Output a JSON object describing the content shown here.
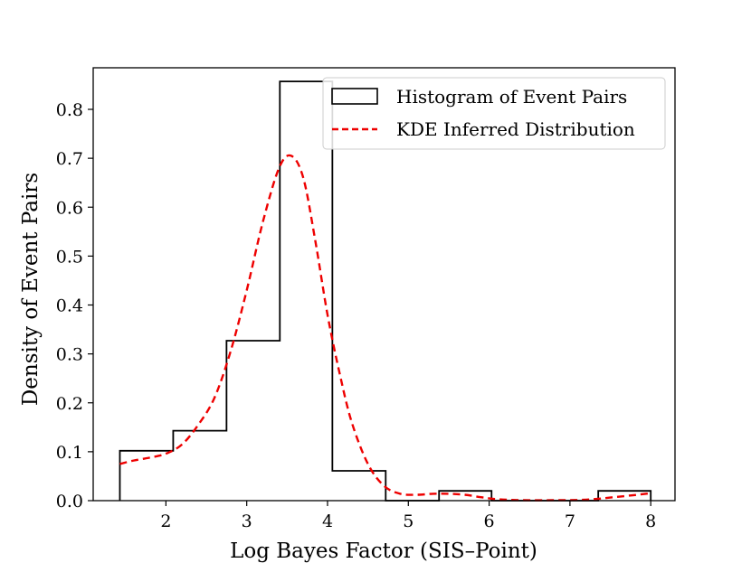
{
  "chart_data": {
    "type": "histogram",
    "title": "",
    "xlabel": "Log Bayes Factor (SIS–Point)",
    "ylabel": "Density of Event Pairs",
    "xlim": [
      1.1,
      8.3
    ],
    "ylim": [
      0.0,
      0.885
    ],
    "xticks": [
      2,
      3,
      4,
      5,
      6,
      7,
      8
    ],
    "yticks": [
      0.0,
      0.1,
      0.2,
      0.3,
      0.4,
      0.5,
      0.6,
      0.7,
      0.8
    ],
    "grid": false,
    "legend_position": "top-right",
    "series": [
      {
        "name": "Histogram of Event Pairs",
        "kind": "step-histogram",
        "color": "#000000",
        "bin_edges": [
          1.43,
          2.09,
          2.75,
          3.41,
          4.06,
          4.72,
          5.38,
          6.03,
          6.69,
          7.35,
          8.0
        ],
        "densities": [
          0.102,
          0.143,
          0.327,
          0.857,
          0.061,
          0.0,
          0.02,
          0.0,
          0.0,
          0.02
        ]
      },
      {
        "name": "KDE Inferred Distribution",
        "kind": "dashed-line",
        "color": "#ee0000",
        "x": [
          1.43,
          1.6,
          1.8,
          2.0,
          2.2,
          2.4,
          2.6,
          2.8,
          3.0,
          3.2,
          3.4,
          3.55,
          3.7,
          3.85,
          4.0,
          4.15,
          4.3,
          4.5,
          4.7,
          4.9,
          5.1,
          5.3,
          5.5,
          5.7,
          5.9,
          6.1,
          6.4,
          6.8,
          7.2,
          7.6,
          8.0
        ],
        "y": [
          0.075,
          0.082,
          0.088,
          0.096,
          0.115,
          0.155,
          0.21,
          0.305,
          0.43,
          0.57,
          0.68,
          0.705,
          0.66,
          0.53,
          0.38,
          0.26,
          0.16,
          0.075,
          0.03,
          0.014,
          0.012,
          0.014,
          0.014,
          0.012,
          0.007,
          0.003,
          0.001,
          0.001,
          0.002,
          0.008,
          0.015
        ]
      }
    ]
  }
}
